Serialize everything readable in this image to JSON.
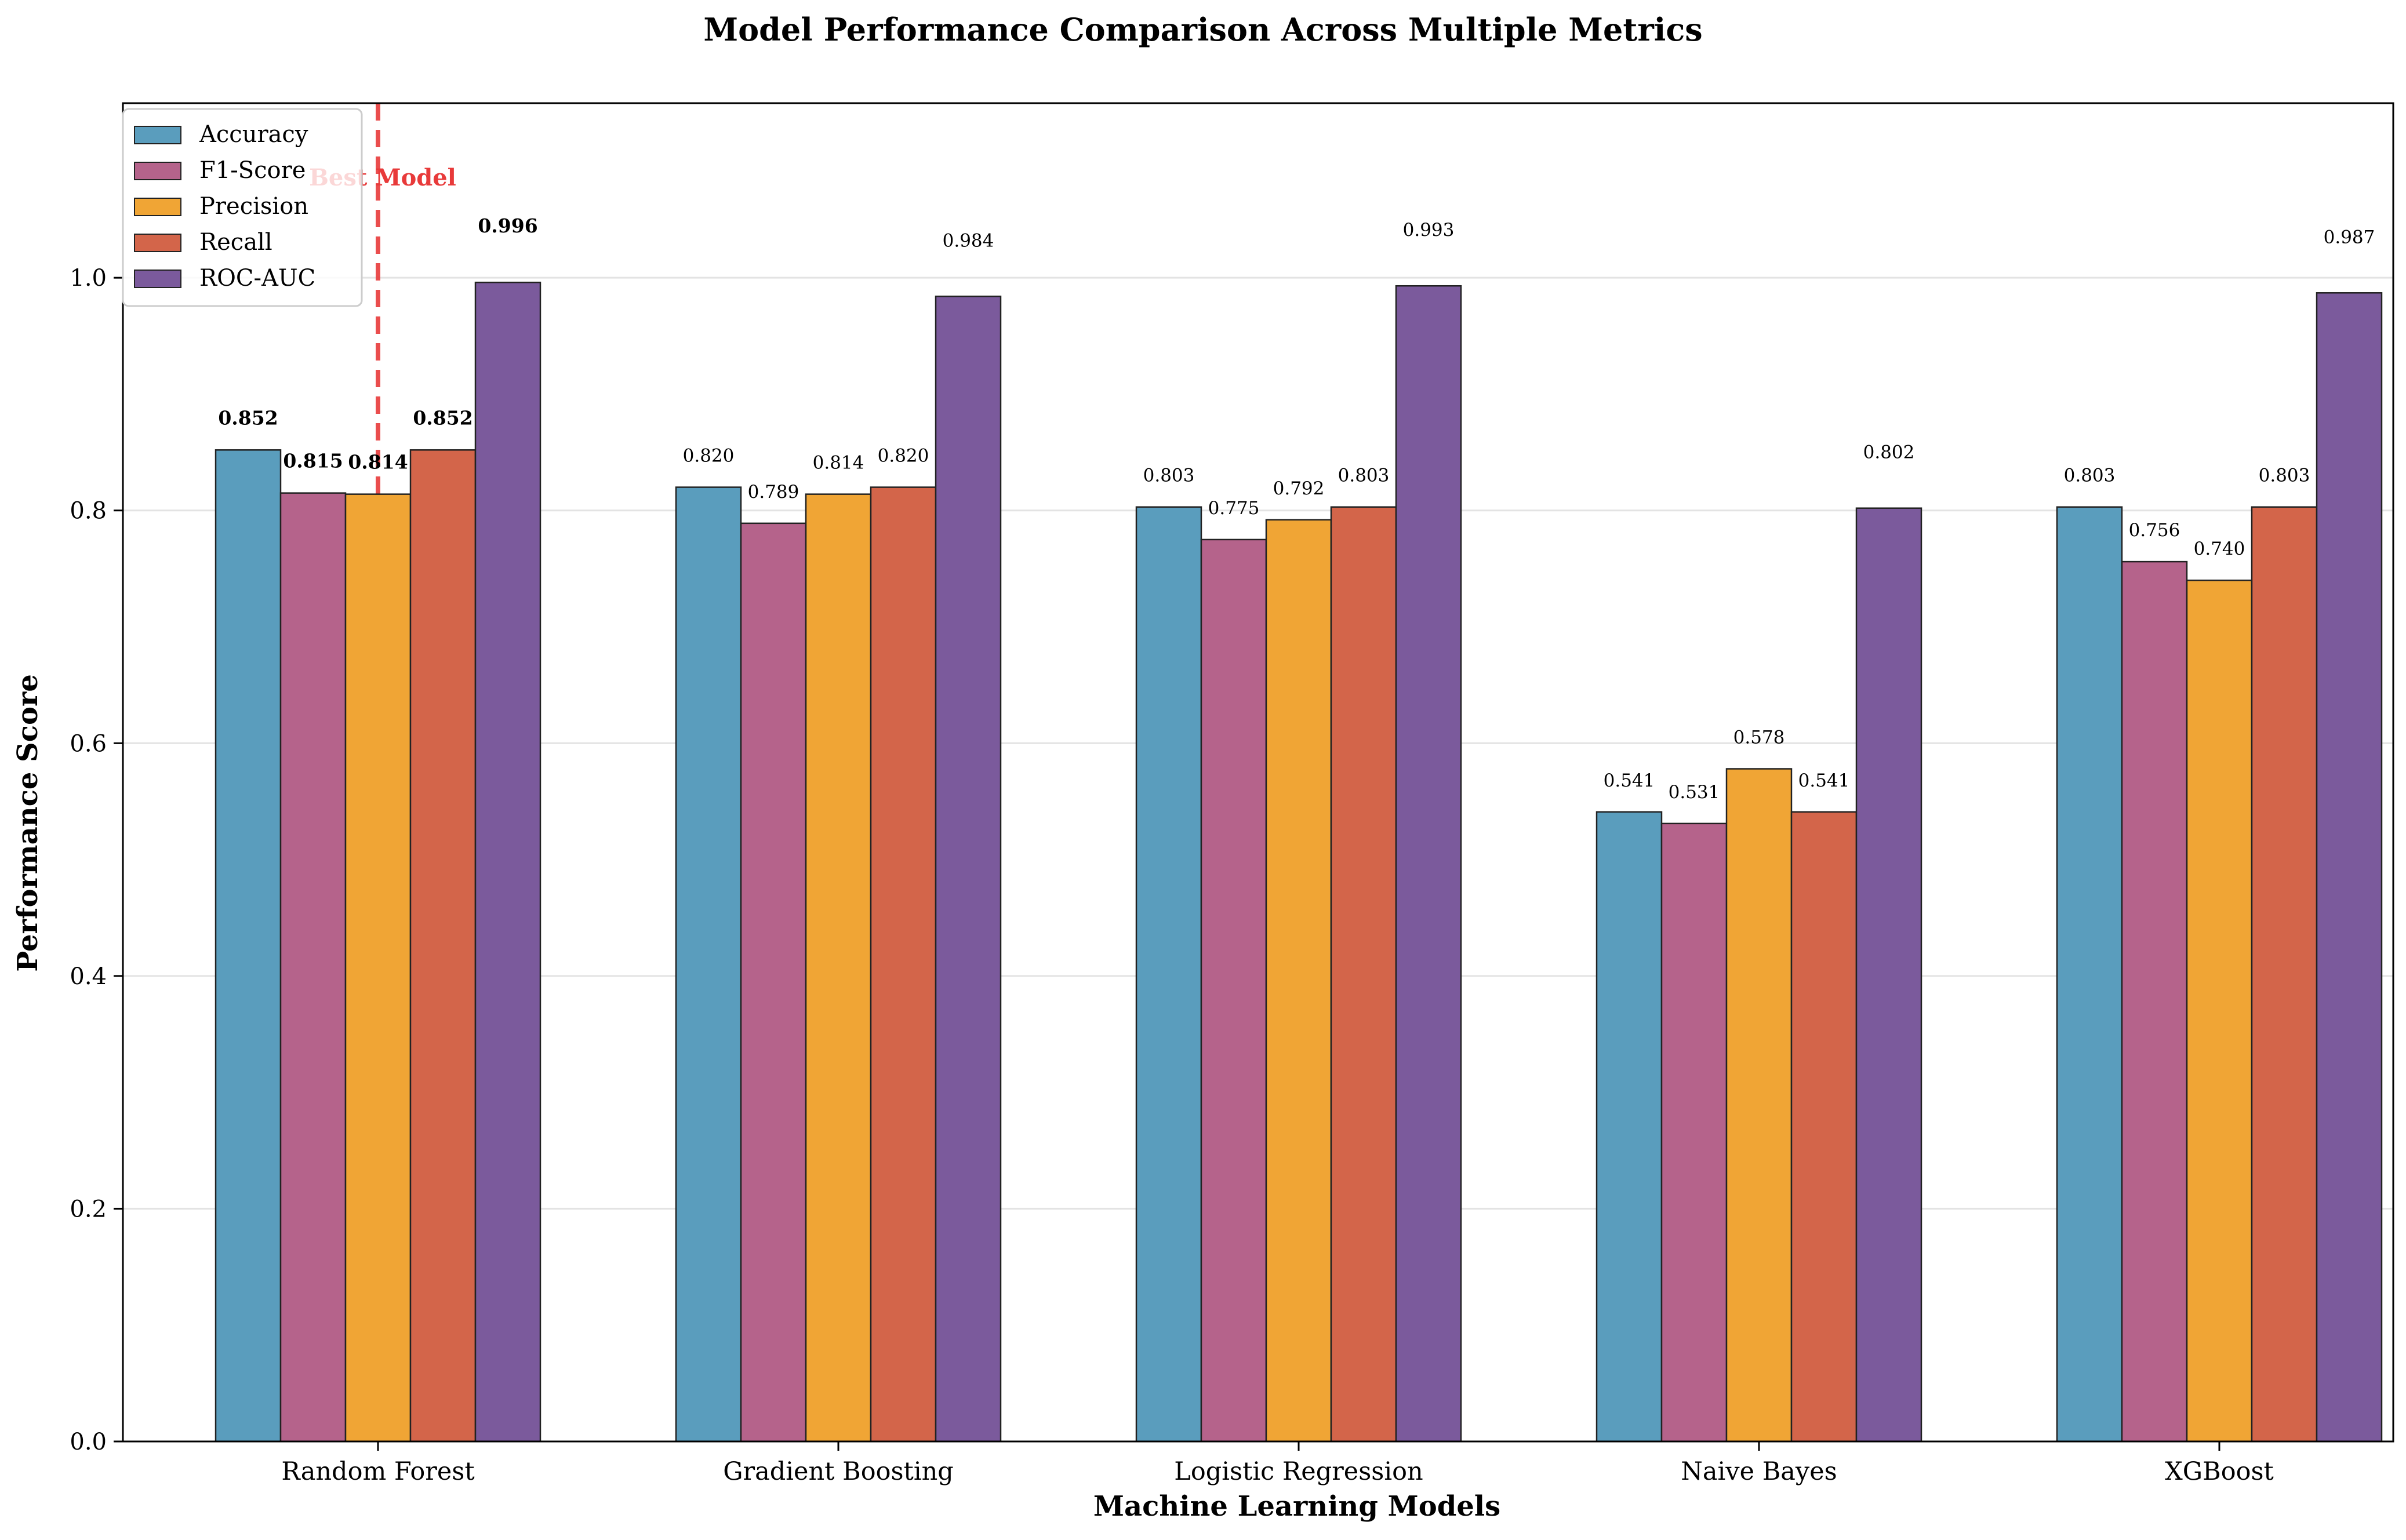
{
  "chart_data": {
    "type": "bar",
    "title": "Model Performance Comparison Across Multiple Metrics",
    "xlabel": "Machine Learning Models",
    "ylabel": "Performance Score",
    "ylim": [
      0,
      1.15
    ],
    "yticks": [
      0.0,
      0.2,
      0.4,
      0.6,
      0.8,
      1.0
    ],
    "ytick_labels": [
      "0.0",
      "0.2",
      "0.4",
      "0.6",
      "0.8",
      "1.0"
    ],
    "grid": "horizontal",
    "legend_position": "top-left",
    "categories": [
      "Random Forest",
      "Gradient Boosting",
      "Logistic Regression",
      "Naive Bayes",
      "XGBoost"
    ],
    "series": [
      {
        "name": "Accuracy",
        "color": "#5a9dbd",
        "values": [
          0.852,
          0.82,
          0.803,
          0.541,
          0.803
        ],
        "labels": [
          "0.852",
          "0.820",
          "0.803",
          "0.541",
          "0.803"
        ]
      },
      {
        "name": "F1-Score",
        "color": "#b5638b",
        "values": [
          0.815,
          0.789,
          0.775,
          0.531,
          0.756
        ],
        "labels": [
          "0.815",
          "0.789",
          "0.775",
          "0.531",
          "0.756"
        ]
      },
      {
        "name": "Precision",
        "color": "#f0a535",
        "values": [
          0.814,
          0.814,
          0.792,
          0.578,
          0.74
        ],
        "labels": [
          "0.814",
          "0.814",
          "0.792",
          "0.578",
          "0.740"
        ]
      },
      {
        "name": "Recall",
        "color": "#d3654a",
        "values": [
          0.852,
          0.82,
          0.803,
          0.541,
          0.803
        ],
        "labels": [
          "0.852",
          "0.820",
          "0.803",
          "0.541",
          "0.803"
        ]
      },
      {
        "name": "ROC-AUC",
        "color": "#7b5a9c",
        "values": [
          0.996,
          0.984,
          0.993,
          0.802,
          0.987
        ],
        "labels": [
          "0.996",
          "0.984",
          "0.993",
          "0.802",
          "0.987"
        ]
      }
    ],
    "bold_labels_category": "Random Forest",
    "annotation": {
      "text": "Best Model",
      "color": "#e83a3a",
      "category": "Random Forest"
    }
  }
}
